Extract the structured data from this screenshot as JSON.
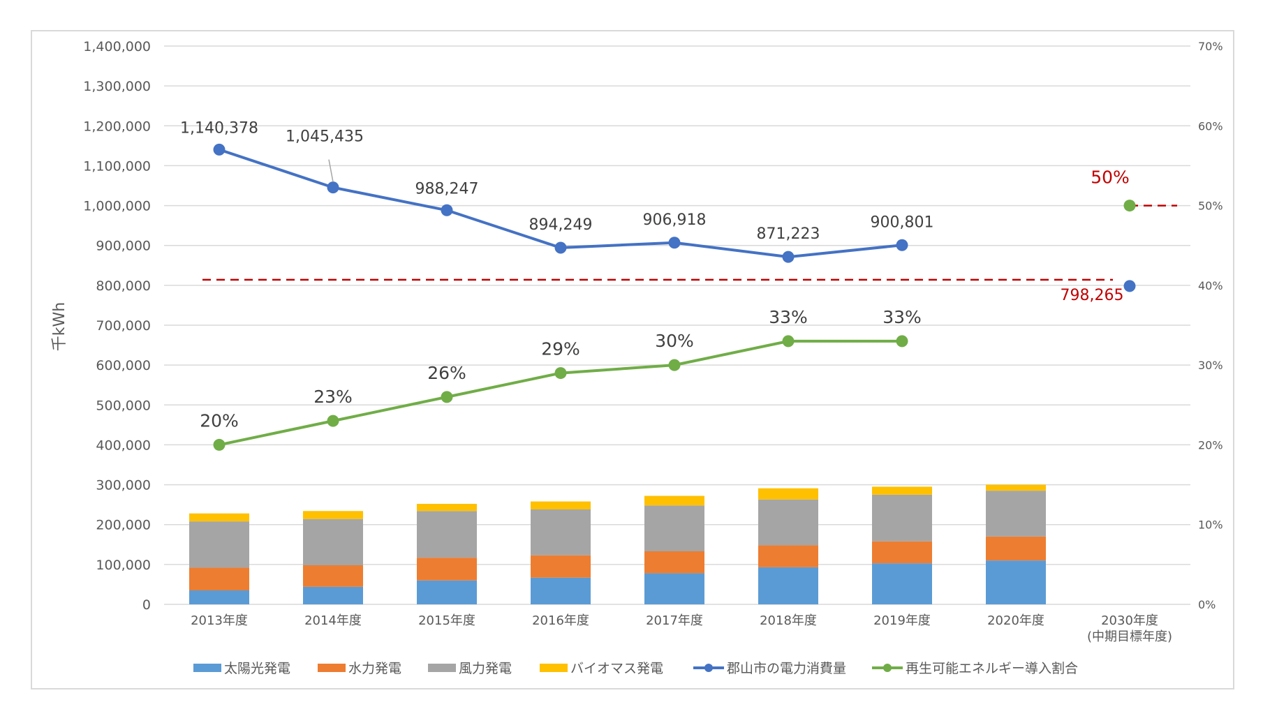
{
  "chart_data": {
    "type": "bar",
    "ylabel": "千kWh",
    "y_left_ticks": [
      "1,400,000",
      "1,300,000",
      "1,200,000",
      "1,100,000",
      "1,000,000",
      "900,000",
      "800,000",
      "700,000",
      "600,000",
      "500,000",
      "400,000",
      "300,000",
      "200,000",
      "100,000",
      "0"
    ],
    "y_right_ticks": [
      "70%",
      "60%",
      "50%",
      "40%",
      "30%",
      "20%",
      "10%",
      "0%"
    ],
    "ylim": [
      0,
      1400000
    ],
    "ylim_right": [
      0,
      70
    ],
    "categories": [
      "2013年度",
      "2014年度",
      "2015年度",
      "2016年度",
      "2017年度",
      "2018年度",
      "2019年度",
      "2020年度",
      "2030年度"
    ],
    "category_sublabels": [
      "",
      "",
      "",
      "",
      "",
      "",
      "",
      "",
      "(中期目標年度)"
    ],
    "stacked_series": [
      {
        "name": "太陽光発電",
        "color": "#5b9bd5",
        "values": [
          35000,
          44000,
          60000,
          67000,
          78000,
          93000,
          103000,
          110000,
          null
        ]
      },
      {
        "name": "水力発電",
        "color": "#ed7d31",
        "values": [
          57000,
          54000,
          57000,
          56000,
          55000,
          55000,
          55000,
          60000,
          null
        ]
      },
      {
        "name": "風力発電",
        "color": "#a5a5a5",
        "values": [
          116000,
          116000,
          117000,
          115000,
          115000,
          115000,
          117000,
          115000,
          null
        ]
      },
      {
        "name": "バイオマス発電",
        "color": "#ffc000",
        "values": [
          20000,
          20000,
          18000,
          20000,
          24000,
          28000,
          20000,
          15000,
          null
        ]
      }
    ],
    "line_series": [
      {
        "name": "郡山市の電力消費量",
        "color": "#4472c4",
        "axis": "left",
        "values": [
          1140378,
          1045435,
          988247,
          894249,
          906918,
          871223,
          900801,
          null,
          798265
        ],
        "labels": [
          "1,140,378",
          "1,045,435",
          "988,247",
          "894,249",
          "906,918",
          "871,223",
          "900,801",
          "",
          "798,265"
        ]
      },
      {
        "name": "再生可能エネルギー導入割合",
        "color": "#70ad47",
        "axis": "right",
        "values": [
          20,
          23,
          26,
          29,
          30,
          33,
          33,
          null,
          50
        ],
        "labels": [
          "20%",
          "23%",
          "26%",
          "29%",
          "30%",
          "33%",
          "33%",
          "",
          "50%"
        ]
      }
    ],
    "target_color": "#c00000",
    "grid": true,
    "legend_position": "bottom",
    "legend": [
      "太陽光発電",
      "水力発電",
      "風力発電",
      "バイオマス発電",
      "郡山市の電力消費量",
      "再生可能エネルギー導入割合"
    ]
  }
}
